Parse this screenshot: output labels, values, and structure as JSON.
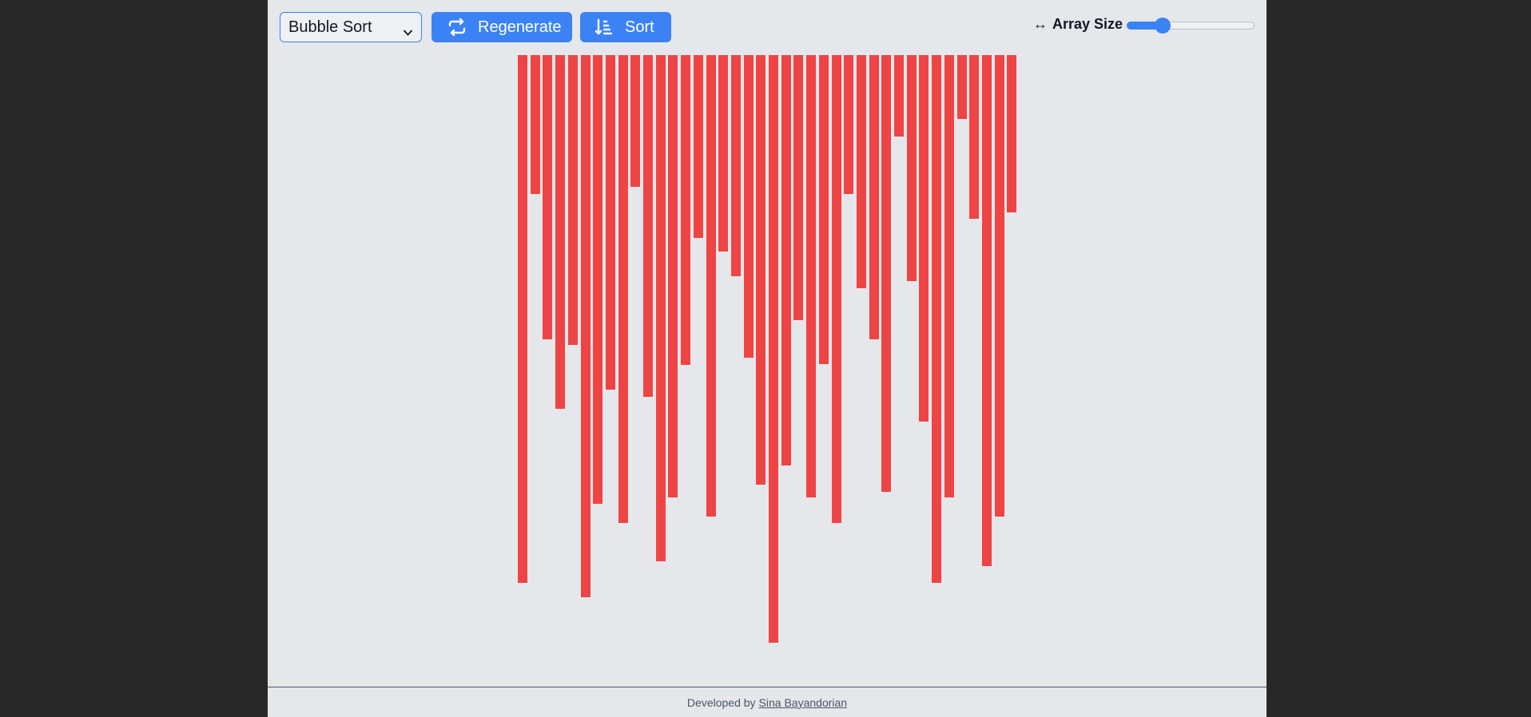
{
  "toolbar": {
    "algorithm": {
      "selected": "Bubble Sort",
      "icon": "chevron-down-icon"
    },
    "regenerate": {
      "label": "Regenerate",
      "icon": "repeat-icon"
    },
    "sort": {
      "label": "Sort",
      "icon": "sort-descending-icon"
    },
    "array_size": {
      "label": "Array Size",
      "icon": "↔",
      "value_fraction": 0.28
    }
  },
  "colors": {
    "bar": "#ef4444",
    "accent": "#3b82f6",
    "background": "#e5e7eb"
  },
  "bars": {
    "max_value": 740,
    "values": [
      665,
      175,
      358,
      445,
      365,
      683,
      565,
      421,
      589,
      166,
      430,
      637,
      557,
      390,
      230,
      581,
      247,
      279,
      381,
      541,
      740,
      517,
      334,
      557,
      389,
      589,
      175,
      294,
      358,
      550,
      103,
      285,
      461,
      665,
      557,
      80,
      206,
      643,
      581,
      198
    ]
  },
  "footer": {
    "prefix": "Developed by",
    "author": "Sina Bayandorian"
  }
}
